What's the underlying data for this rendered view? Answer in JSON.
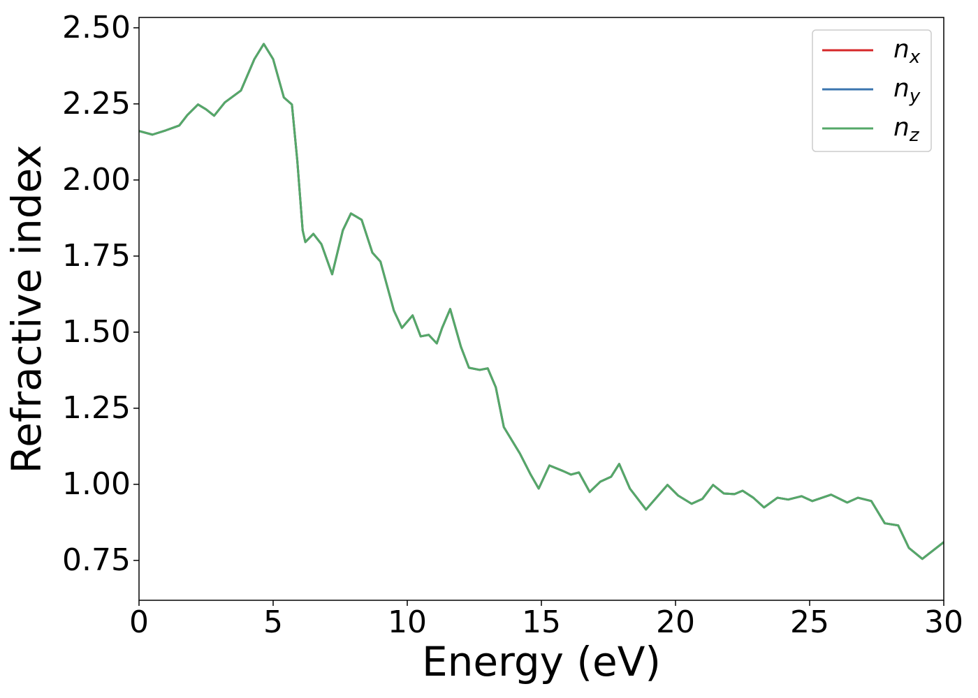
{
  "chart_data": {
    "type": "line",
    "xlabel": "Energy (eV)",
    "ylabel": "Refractive index",
    "x": [
      0,
      0.5,
      1.0,
      1.5,
      1.8,
      2.2,
      2.5,
      2.8,
      3.2,
      3.8,
      4.3,
      4.65,
      5.0,
      5.4,
      5.7,
      5.9,
      6.1,
      6.2,
      6.5,
      6.8,
      7.2,
      7.6,
      7.9,
      8.3,
      8.7,
      9.0,
      9.5,
      9.8,
      10.2,
      10.5,
      10.8,
      11.1,
      11.3,
      11.6,
      12.0,
      12.3,
      12.7,
      13.0,
      13.3,
      13.6,
      14.2,
      14.6,
      14.9,
      15.3,
      15.8,
      16.1,
      16.4,
      16.8,
      17.2,
      17.6,
      17.9,
      18.3,
      18.9,
      19.7,
      20.1,
      20.6,
      21.0,
      21.4,
      21.8,
      22.2,
      22.5,
      22.9,
      23.3,
      23.8,
      24.2,
      24.7,
      25.1,
      25.8,
      26.4,
      26.8,
      27.3,
      27.8,
      28.3,
      28.7,
      29.2,
      30.0
    ],
    "series": [
      {
        "name": "nx",
        "color": "#d62728",
        "values": [
          2.161,
          2.149,
          2.163,
          2.179,
          2.213,
          2.248,
          2.232,
          2.211,
          2.255,
          2.294,
          2.397,
          2.447,
          2.397,
          2.271,
          2.248,
          2.064,
          1.835,
          1.796,
          1.823,
          1.789,
          1.69,
          1.835,
          1.89,
          1.869,
          1.761,
          1.732,
          1.571,
          1.514,
          1.555,
          1.486,
          1.491,
          1.463,
          1.514,
          1.576,
          1.452,
          1.383,
          1.376,
          1.381,
          1.319,
          1.188,
          1.101,
          1.032,
          0.986,
          1.062,
          1.044,
          1.032,
          1.039,
          0.975,
          1.009,
          1.025,
          1.067,
          0.986,
          0.917,
          0.998,
          0.963,
          0.936,
          0.952,
          0.998,
          0.97,
          0.968,
          0.979,
          0.956,
          0.924,
          0.956,
          0.95,
          0.961,
          0.945,
          0.966,
          0.94,
          0.956,
          0.945,
          0.872,
          0.865,
          0.791,
          0.755,
          0.81
        ]
      },
      {
        "name": "ny",
        "color": "#3b75af",
        "values": [
          2.161,
          2.149,
          2.163,
          2.179,
          2.213,
          2.248,
          2.232,
          2.211,
          2.255,
          2.294,
          2.397,
          2.447,
          2.397,
          2.271,
          2.248,
          2.064,
          1.835,
          1.796,
          1.823,
          1.789,
          1.69,
          1.835,
          1.89,
          1.869,
          1.761,
          1.732,
          1.571,
          1.514,
          1.555,
          1.486,
          1.491,
          1.463,
          1.514,
          1.576,
          1.452,
          1.383,
          1.376,
          1.381,
          1.319,
          1.188,
          1.101,
          1.032,
          0.986,
          1.062,
          1.044,
          1.032,
          1.039,
          0.975,
          1.009,
          1.025,
          1.067,
          0.986,
          0.917,
          0.998,
          0.963,
          0.936,
          0.952,
          0.998,
          0.97,
          0.968,
          0.979,
          0.956,
          0.924,
          0.956,
          0.95,
          0.961,
          0.945,
          0.966,
          0.94,
          0.956,
          0.945,
          0.872,
          0.865,
          0.791,
          0.755,
          0.81
        ]
      },
      {
        "name": "nz",
        "color": "#55a868",
        "values": [
          2.161,
          2.149,
          2.163,
          2.179,
          2.213,
          2.248,
          2.232,
          2.211,
          2.255,
          2.294,
          2.397,
          2.447,
          2.397,
          2.271,
          2.248,
          2.064,
          1.835,
          1.796,
          1.823,
          1.789,
          1.69,
          1.835,
          1.89,
          1.869,
          1.761,
          1.732,
          1.571,
          1.514,
          1.555,
          1.486,
          1.491,
          1.463,
          1.514,
          1.576,
          1.452,
          1.383,
          1.376,
          1.381,
          1.319,
          1.188,
          1.101,
          1.032,
          0.986,
          1.062,
          1.044,
          1.032,
          1.039,
          0.975,
          1.009,
          1.025,
          1.067,
          0.986,
          0.917,
          0.998,
          0.963,
          0.936,
          0.952,
          0.998,
          0.97,
          0.968,
          0.979,
          0.956,
          0.924,
          0.956,
          0.95,
          0.961,
          0.945,
          0.966,
          0.94,
          0.956,
          0.945,
          0.872,
          0.865,
          0.791,
          0.755,
          0.81
        ]
      }
    ],
    "xlim": [
      0,
      30
    ],
    "xticks": [
      0,
      5,
      10,
      15,
      20,
      25,
      30
    ],
    "ylim": [
      0.619,
      2.534
    ],
    "yticks": [
      {
        "value": 0.75,
        "label": "0.75"
      },
      {
        "value": 1.0,
        "label": "1.00"
      },
      {
        "value": 1.25,
        "label": "1.25"
      },
      {
        "value": 1.5,
        "label": "1.50"
      },
      {
        "value": 1.75,
        "label": "1.75"
      },
      {
        "value": 2.0,
        "label": "2.00"
      },
      {
        "value": 2.25,
        "label": "2.25"
      },
      {
        "value": 2.5,
        "label": "2.50"
      }
    ],
    "grid": false,
    "legend": "upper right"
  }
}
